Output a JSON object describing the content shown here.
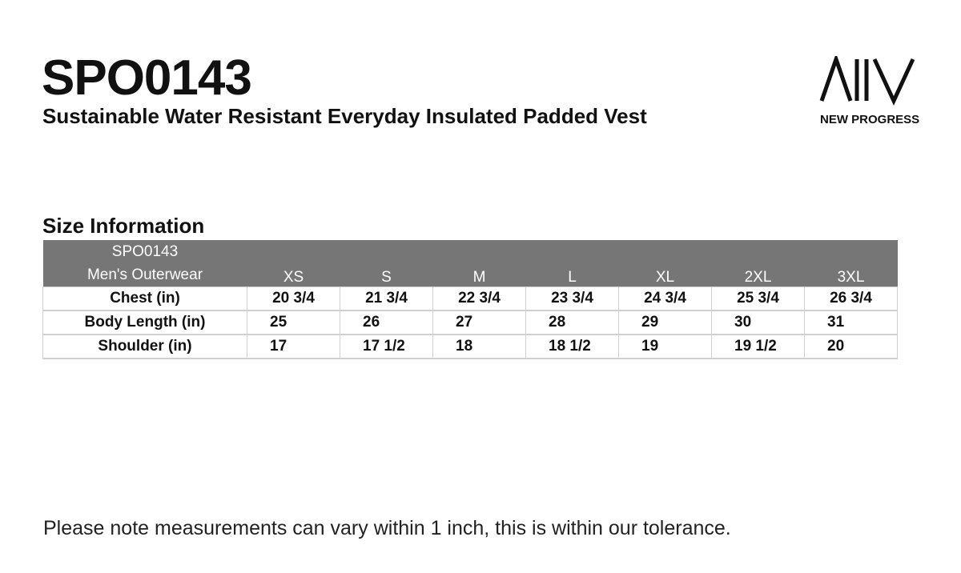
{
  "header": {
    "title": "SPO0143",
    "subtitle": "Sustainable Water Resistant Everyday Insulated Padded Vest",
    "brand": "NEW PROGRESS"
  },
  "section_title": "Size Information",
  "table": {
    "corner": [
      "SPO0143",
      "Men's Outerwear"
    ],
    "columns": [
      "XS",
      "S",
      "M",
      "L",
      "XL",
      "2XL",
      "3XL"
    ],
    "rows": [
      [
        "Chest (in)",
        "20 3/4",
        "21 3/4",
        "22 3/4",
        "23 3/4",
        "24 3/4",
        "25 3/4",
        "26 3/4"
      ],
      [
        "Body Length (in)",
        "25",
        "26",
        "27",
        "28",
        "29",
        "30",
        "31"
      ],
      [
        "Shoulder (in)",
        "17",
        "17 1/2",
        "18",
        "18 1/2",
        "19",
        "19 1/2",
        "20"
      ]
    ]
  },
  "footnote": "Please note measurements can vary within 1 inch, this is within our tolerance."
}
